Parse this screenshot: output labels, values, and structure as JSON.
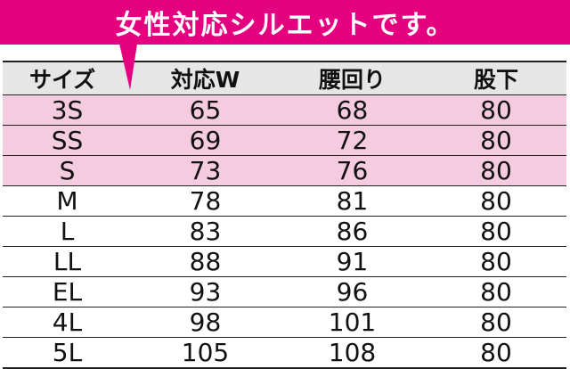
{
  "banner": {
    "text": "女性対応シルエットです。"
  },
  "colors": {
    "accent": "#e4007f",
    "highlight_row": "#f5cbe0",
    "header_bg": "#e6e6e6"
  },
  "table": {
    "headers": [
      "サイズ",
      "対応W",
      "腰回り",
      "股下"
    ],
    "rows": [
      {
        "size": "3S",
        "waist": "65",
        "hip": "68",
        "inseam": "80",
        "highlight": true
      },
      {
        "size": "SS",
        "waist": "69",
        "hip": "72",
        "inseam": "80",
        "highlight": true
      },
      {
        "size": "S",
        "waist": "73",
        "hip": "76",
        "inseam": "80",
        "highlight": true
      },
      {
        "size": "M",
        "waist": "78",
        "hip": "81",
        "inseam": "80",
        "highlight": false
      },
      {
        "size": "L",
        "waist": "83",
        "hip": "86",
        "inseam": "80",
        "highlight": false
      },
      {
        "size": "LL",
        "waist": "88",
        "hip": "91",
        "inseam": "80",
        "highlight": false
      },
      {
        "size": "EL",
        "waist": "93",
        "hip": "96",
        "inseam": "80",
        "highlight": false
      },
      {
        "size": "4L",
        "waist": "98",
        "hip": "101",
        "inseam": "80",
        "highlight": false
      },
      {
        "size": "5L",
        "waist": "105",
        "hip": "108",
        "inseam": "80",
        "highlight": false
      }
    ]
  }
}
